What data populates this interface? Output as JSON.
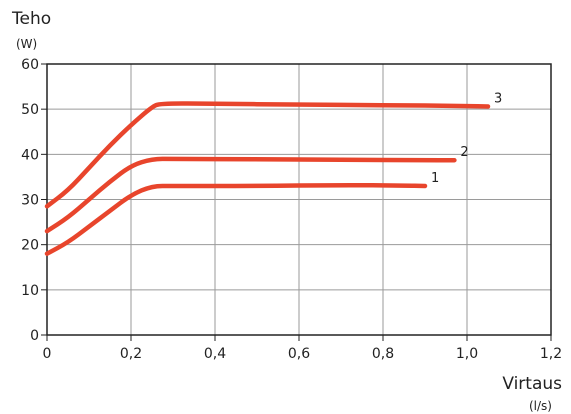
{
  "chart_data": {
    "type": "line",
    "title": "",
    "ylabel": "Teho",
    "yunit": "(W)",
    "xlabel": "Virtaus",
    "xunit": "(l/s)",
    "xlim": [
      0,
      1.2
    ],
    "ylim": [
      0,
      60
    ],
    "xticks": [
      0,
      0.2,
      0.4,
      0.6,
      0.8,
      1.0,
      1.2
    ],
    "xtick_labels": [
      "0",
      "0,2",
      "0,4",
      "0,6",
      "0,8",
      "1,0",
      "1,2"
    ],
    "yticks": [
      0,
      10,
      20,
      30,
      40,
      50,
      60
    ],
    "ytick_labels": [
      "0",
      "10",
      "20",
      "30",
      "40",
      "50",
      "60"
    ],
    "grid": true,
    "series_color": "#e8452c",
    "series": [
      {
        "label": "1",
        "x": [
          0,
          0.05,
          0.1,
          0.15,
          0.2,
          0.25,
          0.3,
          0.5,
          0.7,
          0.85,
          0.9
        ],
        "y": [
          18,
          20.5,
          24,
          27.5,
          31,
          33,
          33,
          33,
          33.2,
          33.1,
          33
        ]
      },
      {
        "label": "2",
        "x": [
          0,
          0.05,
          0.1,
          0.15,
          0.2,
          0.25,
          0.3,
          0.5,
          0.7,
          0.9,
          0.97
        ],
        "y": [
          23,
          26,
          30,
          34,
          37.5,
          39,
          39,
          38.9,
          38.8,
          38.7,
          38.7
        ]
      },
      {
        "label": "3",
        "x": [
          0,
          0.05,
          0.1,
          0.15,
          0.2,
          0.25,
          0.27,
          0.4,
          0.6,
          0.8,
          1.0,
          1.05
        ],
        "y": [
          28.5,
          32,
          37,
          42,
          46.5,
          50.5,
          51.3,
          51.2,
          51.0,
          50.9,
          50.7,
          50.6
        ]
      }
    ]
  }
}
